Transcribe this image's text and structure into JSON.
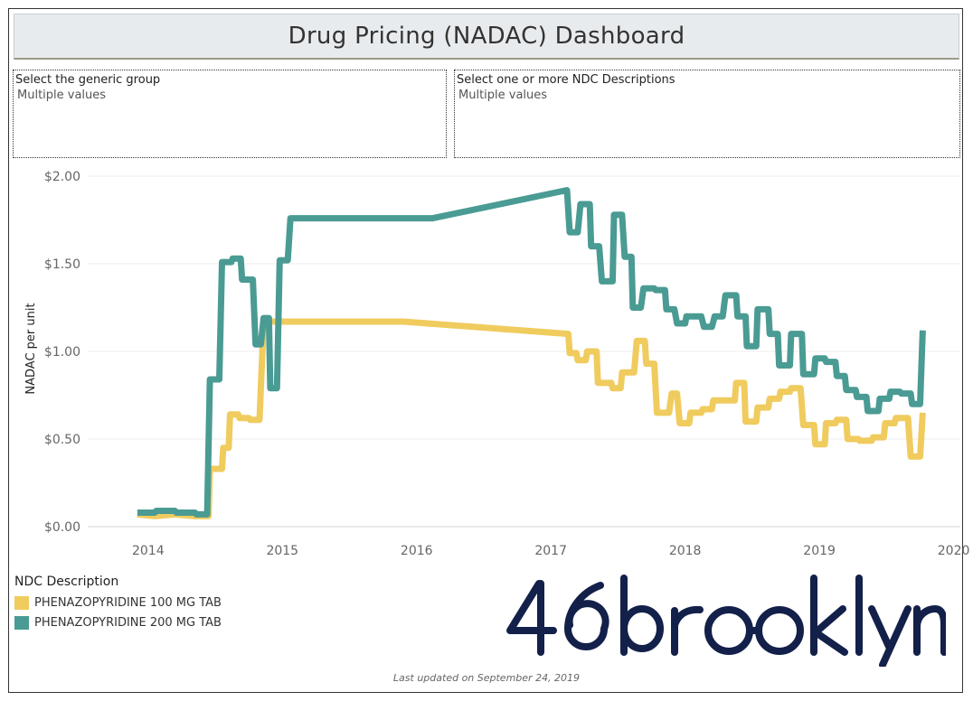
{
  "dashboard": {
    "title": "Drug Pricing (NADAC) Dashboard",
    "footer": "Last updated on September 24, 2019"
  },
  "filters": [
    {
      "label": "Select the generic group",
      "value": "Multiple values"
    },
    {
      "label": "Select one or more NDC Descriptions",
      "value": "Multiple values"
    }
  ],
  "legend": {
    "title": "NDC Description",
    "items": [
      {
        "label": "PHENAZOPYRIDINE 100 MG TAB",
        "color": "#f0cb5e"
      },
      {
        "label": "PHENAZOPYRIDINE 200 MG TAB",
        "color": "#4a9b93"
      }
    ]
  },
  "logo": {
    "text": "46brooklyn",
    "color": "#13204a"
  },
  "chart_data": {
    "type": "line",
    "title": "",
    "xlabel": "",
    "ylabel": "NADAC per unit",
    "xlim": [
      2013.55,
      2020.05
    ],
    "ylim": [
      0,
      2.0
    ],
    "x_ticks": [
      "2014",
      "2015",
      "2016",
      "2017",
      "2018",
      "2019",
      "2020"
    ],
    "y_ticks": [
      "$0.00",
      "$0.50",
      "$1.00",
      "$1.50",
      "$2.00"
    ],
    "grid": true,
    "series": [
      {
        "name": "PHENAZOPYRIDINE 100 MG TAB",
        "color": "#f0cb5e",
        "points": [
          [
            2013.92,
            0.07
          ],
          [
            2014.05,
            0.06
          ],
          [
            2014.2,
            0.07
          ],
          [
            2014.35,
            0.06
          ],
          [
            2014.45,
            0.06
          ],
          [
            2014.46,
            0.33
          ],
          [
            2014.55,
            0.33
          ],
          [
            2014.56,
            0.45
          ],
          [
            2014.6,
            0.45
          ],
          [
            2014.61,
            0.64
          ],
          [
            2014.67,
            0.64
          ],
          [
            2014.68,
            0.62
          ],
          [
            2014.75,
            0.62
          ],
          [
            2014.76,
            0.61
          ],
          [
            2014.83,
            0.61
          ],
          [
            2014.86,
            1.17
          ],
          [
            2015.0,
            1.17
          ],
          [
            2015.9,
            1.17
          ],
          [
            2017.13,
            1.1
          ],
          [
            2017.14,
            0.99
          ],
          [
            2017.19,
            0.99
          ],
          [
            2017.2,
            0.95
          ],
          [
            2017.26,
            0.95
          ],
          [
            2017.27,
            1.0
          ],
          [
            2017.34,
            1.0
          ],
          [
            2017.35,
            0.82
          ],
          [
            2017.45,
            0.82
          ],
          [
            2017.46,
            0.79
          ],
          [
            2017.52,
            0.79
          ],
          [
            2017.53,
            0.88
          ],
          [
            2017.62,
            0.88
          ],
          [
            2017.64,
            1.06
          ],
          [
            2017.7,
            1.06
          ],
          [
            2017.71,
            0.93
          ],
          [
            2017.77,
            0.93
          ],
          [
            2017.79,
            0.65
          ],
          [
            2017.88,
            0.65
          ],
          [
            2017.9,
            0.76
          ],
          [
            2017.94,
            0.76
          ],
          [
            2017.96,
            0.59
          ],
          [
            2018.03,
            0.59
          ],
          [
            2018.04,
            0.65
          ],
          [
            2018.12,
            0.65
          ],
          [
            2018.13,
            0.67
          ],
          [
            2018.2,
            0.67
          ],
          [
            2018.21,
            0.72
          ],
          [
            2018.37,
            0.72
          ],
          [
            2018.38,
            0.82
          ],
          [
            2018.44,
            0.82
          ],
          [
            2018.45,
            0.6
          ],
          [
            2018.53,
            0.6
          ],
          [
            2018.54,
            0.68
          ],
          [
            2018.62,
            0.68
          ],
          [
            2018.63,
            0.73
          ],
          [
            2018.7,
            0.73
          ],
          [
            2018.71,
            0.77
          ],
          [
            2018.78,
            0.77
          ],
          [
            2018.79,
            0.79
          ],
          [
            2018.86,
            0.79
          ],
          [
            2018.88,
            0.58
          ],
          [
            2018.96,
            0.58
          ],
          [
            2018.97,
            0.47
          ],
          [
            2019.04,
            0.47
          ],
          [
            2019.05,
            0.59
          ],
          [
            2019.12,
            0.59
          ],
          [
            2019.13,
            0.61
          ],
          [
            2019.2,
            0.61
          ],
          [
            2019.21,
            0.5
          ],
          [
            2019.29,
            0.5
          ],
          [
            2019.3,
            0.49
          ],
          [
            2019.39,
            0.49
          ],
          [
            2019.4,
            0.51
          ],
          [
            2019.48,
            0.51
          ],
          [
            2019.49,
            0.59
          ],
          [
            2019.56,
            0.59
          ],
          [
            2019.57,
            0.62
          ],
          [
            2019.66,
            0.62
          ],
          [
            2019.68,
            0.4
          ],
          [
            2019.75,
            0.4
          ],
          [
            2019.77,
            0.65
          ]
        ]
      },
      {
        "name": "PHENAZOPYRIDINE 200 MG TAB",
        "color": "#4a9b93",
        "points": [
          [
            2013.92,
            0.08
          ],
          [
            2014.05,
            0.08
          ],
          [
            2014.06,
            0.09
          ],
          [
            2014.2,
            0.09
          ],
          [
            2014.21,
            0.08
          ],
          [
            2014.35,
            0.08
          ],
          [
            2014.36,
            0.07
          ],
          [
            2014.44,
            0.07
          ],
          [
            2014.46,
            0.84
          ],
          [
            2014.53,
            0.84
          ],
          [
            2014.55,
            1.51
          ],
          [
            2014.62,
            1.51
          ],
          [
            2014.63,
            1.53
          ],
          [
            2014.69,
            1.53
          ],
          [
            2014.7,
            1.41
          ],
          [
            2014.78,
            1.41
          ],
          [
            2014.8,
            1.04
          ],
          [
            2014.84,
            1.04
          ],
          [
            2014.86,
            1.19
          ],
          [
            2014.9,
            1.19
          ],
          [
            2014.91,
            0.79
          ],
          [
            2014.96,
            0.79
          ],
          [
            2014.98,
            1.52
          ],
          [
            2015.04,
            1.52
          ],
          [
            2015.06,
            1.76
          ],
          [
            2016.12,
            1.76
          ],
          [
            2017.12,
            1.92
          ],
          [
            2017.14,
            1.68
          ],
          [
            2017.2,
            1.68
          ],
          [
            2017.22,
            1.84
          ],
          [
            2017.29,
            1.84
          ],
          [
            2017.3,
            1.6
          ],
          [
            2017.36,
            1.6
          ],
          [
            2017.38,
            1.4
          ],
          [
            2017.46,
            1.4
          ],
          [
            2017.47,
            1.78
          ],
          [
            2017.53,
            1.78
          ],
          [
            2017.55,
            1.54
          ],
          [
            2017.6,
            1.54
          ],
          [
            2017.61,
            1.25
          ],
          [
            2017.67,
            1.25
          ],
          [
            2017.69,
            1.36
          ],
          [
            2017.77,
            1.36
          ],
          [
            2017.78,
            1.35
          ],
          [
            2017.85,
            1.35
          ],
          [
            2017.86,
            1.24
          ],
          [
            2017.92,
            1.24
          ],
          [
            2017.94,
            1.16
          ],
          [
            2018.0,
            1.16
          ],
          [
            2018.01,
            1.2
          ],
          [
            2018.12,
            1.2
          ],
          [
            2018.14,
            1.14
          ],
          [
            2018.2,
            1.14
          ],
          [
            2018.22,
            1.2
          ],
          [
            2018.28,
            1.2
          ],
          [
            2018.3,
            1.32
          ],
          [
            2018.38,
            1.32
          ],
          [
            2018.39,
            1.2
          ],
          [
            2018.45,
            1.2
          ],
          [
            2018.46,
            1.03
          ],
          [
            2018.53,
            1.03
          ],
          [
            2018.54,
            1.24
          ],
          [
            2018.62,
            1.24
          ],
          [
            2018.63,
            1.1
          ],
          [
            2018.69,
            1.1
          ],
          [
            2018.7,
            0.92
          ],
          [
            2018.78,
            0.92
          ],
          [
            2018.79,
            1.1
          ],
          [
            2018.87,
            1.1
          ],
          [
            2018.88,
            0.87
          ],
          [
            2018.96,
            0.87
          ],
          [
            2018.97,
            0.96
          ],
          [
            2019.04,
            0.96
          ],
          [
            2019.05,
            0.94
          ],
          [
            2019.12,
            0.94
          ],
          [
            2019.13,
            0.86
          ],
          [
            2019.19,
            0.86
          ],
          [
            2019.2,
            0.78
          ],
          [
            2019.27,
            0.78
          ],
          [
            2019.28,
            0.74
          ],
          [
            2019.35,
            0.74
          ],
          [
            2019.36,
            0.66
          ],
          [
            2019.44,
            0.66
          ],
          [
            2019.45,
            0.73
          ],
          [
            2019.52,
            0.73
          ],
          [
            2019.53,
            0.77
          ],
          [
            2019.6,
            0.77
          ],
          [
            2019.61,
            0.76
          ],
          [
            2019.68,
            0.76
          ],
          [
            2019.69,
            0.7
          ],
          [
            2019.75,
            0.7
          ],
          [
            2019.77,
            1.12
          ]
        ]
      }
    ]
  }
}
